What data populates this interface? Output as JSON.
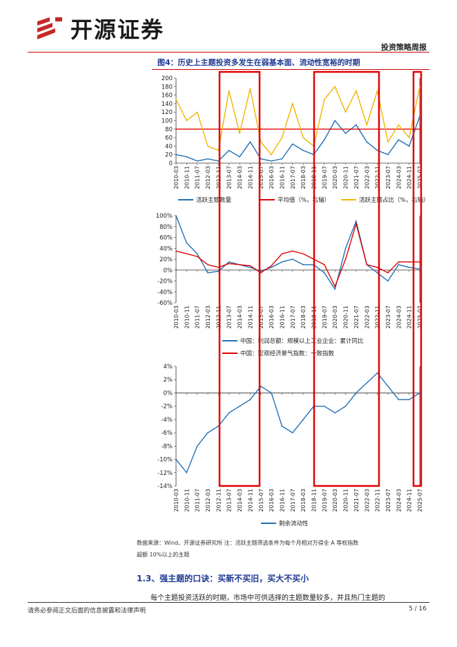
{
  "header": {
    "logo_text": "开源证券",
    "report_type": "投资策略周报"
  },
  "figure": {
    "title": "图4：历史上主题投资多发生在弱基本面、流动性宽裕的时期"
  },
  "chart_data": [
    {
      "type": "line",
      "x": [
        "2010-03",
        "2010-11",
        "2011-07",
        "2012-03",
        "2012-11",
        "2013-07",
        "2014-03",
        "2014-11",
        "2015-07",
        "2016-03",
        "2016-11",
        "2017-07",
        "2018-03",
        "2018-11",
        "2019-07",
        "2020-03",
        "2020-11",
        "2021-07",
        "2022-03",
        "2022-11",
        "2023-07",
        "2024-03",
        "2024-11",
        "2025-07"
      ],
      "yticks_left": [
        "0",
        "20",
        "40",
        "60",
        "80",
        "100",
        "120",
        "140",
        "160",
        "180",
        "200"
      ],
      "ylim_left": [
        0,
        200
      ],
      "series": [
        {
          "name": "活跃主题数量",
          "axis": "left",
          "color": "#1f6fb5",
          "values": [
            20,
            15,
            5,
            10,
            5,
            30,
            15,
            50,
            10,
            5,
            10,
            45,
            30,
            20,
            55,
            100,
            70,
            90,
            50,
            30,
            20,
            55,
            40,
            110
          ]
        },
        {
          "name": "平均值（%，右轴）",
          "axis": "left",
          "color": "#e00000",
          "values": [
            80,
            80,
            80,
            80,
            80,
            80,
            80,
            80,
            80,
            80,
            80,
            80,
            80,
            80,
            80,
            80,
            80,
            80,
            80,
            80,
            80,
            80,
            80,
            80
          ]
        },
        {
          "name": "活跃主题占比（%，右轴）",
          "axis": "left",
          "color": "#f2b400",
          "values": [
            150,
            100,
            120,
            40,
            30,
            170,
            70,
            175,
            50,
            20,
            60,
            140,
            60,
            40,
            150,
            180,
            120,
            170,
            90,
            170,
            50,
            90,
            60,
            180
          ]
        }
      ],
      "legend": [
        "活跃主题数量",
        "平均值（%，右轴）",
        "活跃主题占比（%，右轴）"
      ]
    },
    {
      "type": "line",
      "x": [
        "2010-03",
        "2010-11",
        "2011-07",
        "2012-03",
        "2012-11",
        "2013-07",
        "2014-03",
        "2014-11",
        "2015-07",
        "2016-03",
        "2016-11",
        "2017-07",
        "2018-03",
        "2018-11",
        "2019-07",
        "2020-03",
        "2020-11",
        "2021-07",
        "2022-03",
        "2022-11",
        "2023-07",
        "2024-03",
        "2024-11",
        "2025-07"
      ],
      "yticks_left": [
        "-60%",
        "-40%",
        "-20%",
        "0%",
        "20%",
        "40%",
        "60%",
        "80%",
        "100%"
      ],
      "ylim_left": [
        -60,
        100
      ],
      "series": [
        {
          "name": "中国：利润总额：规模以上工业企业：累计同比",
          "color": "#1f6fb5",
          "values": [
            100,
            50,
            30,
            -5,
            -2,
            15,
            10,
            5,
            -2,
            5,
            15,
            20,
            10,
            10,
            -5,
            -35,
            40,
            90,
            10,
            -5,
            -20,
            10,
            5,
            2
          ]
        },
        {
          "name": "中国：宏观经济景气指数：一致指数",
          "color": "#e00000",
          "values": [
            35,
            30,
            25,
            10,
            5,
            12,
            10,
            8,
            -5,
            8,
            30,
            35,
            30,
            20,
            10,
            -30,
            20,
            85,
            10,
            5,
            -5,
            15,
            15,
            15
          ]
        }
      ],
      "legend": [
        "中国：利润总额：规模以上工业企业：累计同比",
        "中国：宏观经济景气指数：一致指数"
      ]
    },
    {
      "type": "line",
      "x": [
        "2010-03",
        "2010-11",
        "2011-07",
        "2012-03",
        "2012-11",
        "2013-07",
        "2014-03",
        "2014-11",
        "2015-07",
        "2016-03",
        "2016-11",
        "2017-07",
        "2018-03",
        "2018-11",
        "2019-07",
        "2020-03",
        "2020-11",
        "2021-07",
        "2022-03",
        "2022-11",
        "2023-07",
        "2024-03",
        "2024-11",
        "2025-07"
      ],
      "yticks_left": [
        "-14%",
        "-12%",
        "-10%",
        "-8%",
        "-6%",
        "-4%",
        "-2%",
        "0%",
        "2%",
        "4%"
      ],
      "ylim_left": [
        -14,
        4
      ],
      "series": [
        {
          "name": "剩余流动性",
          "color": "#1f6fb5",
          "values": [
            -10,
            -12,
            -8,
            -6,
            -5,
            -3,
            -2,
            -1,
            1,
            0,
            -5,
            -6,
            -4,
            -2,
            -2,
            -3,
            -2,
            0,
            1.5,
            3,
            1,
            -1,
            -1,
            0
          ]
        }
      ],
      "legend": [
        "剩余流动性"
      ]
    }
  ],
  "highlight_periods": [
    "2013-03~2015-06",
    "2019-01~2022-12",
    "2025-06~2025-12"
  ],
  "note": {
    "line1": "数据来源：Wind、开源证券研究所  注：活跃主题筛选条件为每个月相对万得全 A 等权指数",
    "line2": "超额 10%以上的主题"
  },
  "section": {
    "title": "1.3、强主题的口诀：买新不买旧，买大不买小",
    "body": "每个主题投资活跃的时期，市场中可供选择的主题数量较多，并且热门主题的"
  },
  "footer": {
    "disclaimer": "请务必参阅正文后面的信息披露和法律声明",
    "page": "5 / 16"
  },
  "colors": {
    "accent": "#e00000",
    "title_blue": "#1f3a93",
    "blue": "#1f6fb5",
    "gold": "#f2b400"
  }
}
